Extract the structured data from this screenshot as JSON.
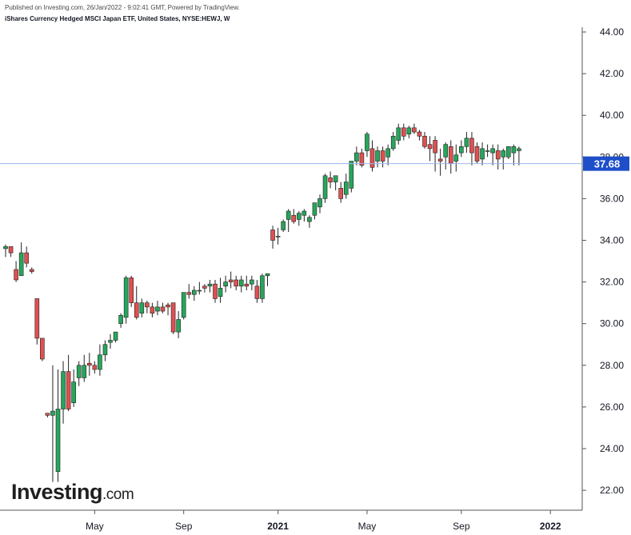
{
  "header": {
    "published": "Published on Investing.com, 26/Jan/2022 - 9:02:41 GMT, Powered by TradingView.",
    "title": "iShares Currency Hedged MSCI Japan ETF, United States, NYSE:HEWJ, W"
  },
  "logo": {
    "brand": "Investing",
    "suffix": ".com"
  },
  "colors": {
    "up": "#26a65b",
    "down": "#e05050",
    "wick": "#222222",
    "last_price_line": "#9db4e8",
    "last_price_label_bg": "#1e4fc9",
    "grid": "#e6e6e6"
  },
  "chart_data": {
    "type": "candlestick",
    "title": "",
    "xlabel": "",
    "ylabel": "",
    "ylim": [
      21,
      44
    ],
    "y_ticks": [
      "44.00",
      "42.00",
      "40.00",
      "38.00",
      "36.00",
      "34.00",
      "32.00",
      "30.00",
      "28.00",
      "26.00",
      "24.00",
      "22.00"
    ],
    "x_ticks": [
      "May",
      "Sep",
      "2021",
      "May",
      "Sep",
      "2022"
    ],
    "x_tick_weeks": [
      17,
      34,
      52,
      69,
      87,
      104
    ],
    "last_price": "37.68",
    "grid": false,
    "ohlc": [
      [
        33.6,
        33.8,
        33.2,
        33.7
      ],
      [
        33.7,
        33.7,
        33.2,
        33.4
      ],
      [
        32.6,
        33.0,
        32.0,
        32.1
      ],
      [
        32.3,
        33.9,
        32.3,
        33.4
      ],
      [
        33.4,
        33.7,
        32.7,
        32.9
      ],
      [
        32.6,
        32.7,
        32.4,
        32.5
      ],
      [
        31.2,
        31.2,
        29.0,
        29.3
      ],
      [
        29.3,
        29.3,
        28.2,
        28.3
      ],
      [
        25.7,
        25.7,
        25.5,
        25.6
      ],
      [
        25.6,
        28.0,
        22.4,
        25.8
      ],
      [
        22.9,
        27.8,
        22.4,
        25.9
      ],
      [
        25.9,
        28.2,
        25.2,
        27.7
      ],
      [
        27.7,
        28.5,
        25.8,
        25.9
      ],
      [
        26.2,
        27.8,
        26.0,
        27.2
      ],
      [
        27.4,
        28.2,
        27.0,
        28.0
      ],
      [
        27.4,
        28.5,
        27.2,
        28.0
      ],
      [
        28.1,
        28.6,
        27.5,
        28.0
      ],
      [
        28.0,
        28.2,
        27.6,
        27.8
      ],
      [
        27.8,
        29.0,
        27.5,
        28.5
      ],
      [
        28.5,
        29.2,
        28.2,
        29.0
      ],
      [
        29.1,
        29.5,
        28.8,
        29.2
      ],
      [
        29.2,
        29.6,
        29.1,
        29.6
      ],
      [
        30.0,
        30.5,
        29.8,
        30.4
      ],
      [
        30.3,
        32.3,
        30.0,
        32.2
      ],
      [
        32.2,
        32.3,
        30.8,
        31.0
      ],
      [
        31.0,
        31.8,
        30.2,
        30.3
      ],
      [
        30.5,
        31.2,
        30.3,
        31.0
      ],
      [
        31.0,
        31.1,
        30.5,
        30.8
      ],
      [
        30.8,
        31.0,
        30.3,
        30.5
      ],
      [
        30.6,
        31.1,
        30.4,
        30.8
      ],
      [
        30.8,
        31.0,
        30.5,
        30.6
      ],
      [
        30.9,
        31.0,
        30.4,
        30.8
      ],
      [
        31.0,
        31.0,
        29.5,
        29.6
      ],
      [
        29.6,
        30.6,
        29.3,
        30.2
      ],
      [
        30.3,
        31.4,
        30.2,
        31.5
      ],
      [
        31.5,
        31.9,
        31.2,
        31.4
      ],
      [
        31.4,
        31.8,
        31.1,
        31.6
      ],
      [
        31.6,
        32.0,
        31.4,
        31.6
      ],
      [
        31.8,
        31.9,
        31.5,
        31.7
      ],
      [
        31.8,
        32.1,
        31.5,
        31.9
      ],
      [
        31.9,
        32.1,
        31.0,
        31.2
      ],
      [
        31.3,
        32.2,
        31.0,
        31.7
      ],
      [
        31.8,
        32.3,
        31.5,
        32.0
      ],
      [
        32.1,
        32.5,
        31.7,
        32.0
      ],
      [
        32.1,
        32.3,
        31.6,
        31.8
      ],
      [
        31.8,
        32.3,
        31.5,
        32.1
      ],
      [
        31.9,
        32.3,
        31.6,
        31.8
      ],
      [
        31.9,
        32.3,
        31.6,
        32.1
      ],
      [
        31.8,
        32.1,
        31.0,
        31.2
      ],
      [
        31.2,
        32.4,
        31.0,
        32.3
      ],
      [
        32.3,
        32.4,
        31.8,
        32.4
      ],
      [
        34.5,
        34.7,
        33.6,
        34.0
      ],
      [
        34.2,
        34.6,
        33.8,
        34.2
      ],
      [
        34.5,
        35.0,
        34.4,
        34.9
      ],
      [
        35.0,
        35.5,
        34.4,
        35.4
      ],
      [
        35.2,
        35.5,
        34.8,
        34.9
      ],
      [
        35.0,
        35.4,
        34.7,
        35.3
      ],
      [
        35.2,
        35.5,
        34.9,
        35.4
      ],
      [
        34.9,
        35.2,
        34.6,
        35.1
      ],
      [
        35.2,
        35.8,
        35.0,
        35.8
      ],
      [
        35.6,
        36.2,
        35.3,
        36.0
      ],
      [
        36.0,
        37.2,
        35.8,
        37.1
      ],
      [
        37.0,
        37.3,
        36.5,
        36.8
      ],
      [
        36.8,
        37.0,
        36.4,
        37.1
      ],
      [
        36.5,
        36.8,
        35.8,
        36.0
      ],
      [
        36.2,
        37.2,
        36.0,
        36.8
      ],
      [
        36.5,
        37.8,
        36.3,
        37.8
      ],
      [
        37.8,
        38.5,
        37.6,
        38.2
      ],
      [
        38.2,
        38.4,
        37.5,
        37.6
      ],
      [
        38.3,
        39.2,
        38.0,
        39.1
      ],
      [
        38.4,
        38.8,
        37.3,
        37.5
      ],
      [
        37.8,
        38.5,
        37.5,
        38.3
      ],
      [
        38.3,
        38.5,
        37.5,
        37.8
      ],
      [
        38.0,
        38.6,
        37.6,
        38.4
      ],
      [
        38.4,
        39.2,
        38.3,
        39.0
      ],
      [
        38.8,
        39.6,
        38.6,
        39.4
      ],
      [
        39.4,
        39.6,
        38.8,
        39.0
      ],
      [
        39.1,
        39.5,
        38.9,
        39.4
      ],
      [
        39.4,
        39.6,
        39.1,
        39.2
      ],
      [
        39.2,
        39.3,
        38.8,
        39.0
      ],
      [
        39.0,
        39.2,
        38.4,
        38.5
      ],
      [
        38.6,
        39.0,
        37.8,
        38.4
      ],
      [
        38.8,
        39.0,
        37.3,
        38.2
      ],
      [
        37.9,
        38.4,
        37.1,
        37.8
      ],
      [
        38.0,
        38.7,
        37.4,
        38.6
      ],
      [
        38.5,
        38.8,
        37.2,
        37.7
      ],
      [
        37.8,
        38.6,
        37.3,
        38.1
      ],
      [
        38.2,
        38.8,
        38.0,
        38.5
      ],
      [
        38.5,
        39.2,
        38.2,
        38.9
      ],
      [
        38.9,
        39.2,
        37.6,
        38.2
      ],
      [
        38.5,
        38.7,
        37.7,
        37.8
      ],
      [
        37.9,
        38.7,
        37.6,
        38.4
      ],
      [
        38.3,
        38.6,
        38.0,
        38.3
      ],
      [
        38.2,
        38.6,
        37.6,
        38.4
      ],
      [
        38.3,
        38.6,
        37.4,
        37.9
      ],
      [
        38.0,
        38.4,
        37.4,
        38.3
      ],
      [
        38.0,
        38.5,
        37.9,
        38.5
      ],
      [
        38.2,
        38.6,
        37.6,
        38.5
      ],
      [
        38.3,
        38.5,
        37.6,
        38.4
      ]
    ]
  }
}
